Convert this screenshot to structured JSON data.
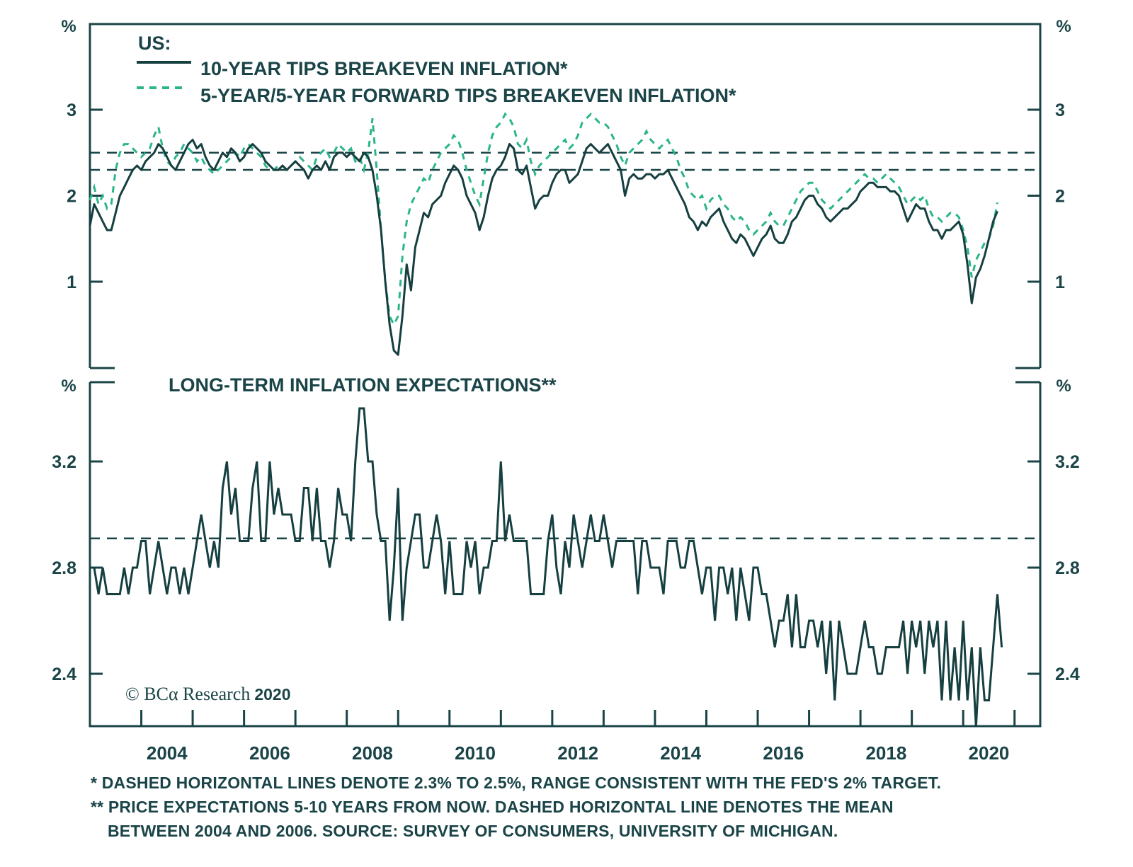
{
  "chart_data": [
    {
      "type": "line",
      "panel": "top",
      "legend_heading": "US:",
      "unit_label": "%",
      "series": [
        {
          "name": "10-YEAR TIPS BREAKEVEN INFLATION*",
          "style": "solid",
          "color": "#163f40",
          "start": 2003.0,
          "step_months": 1,
          "values": [
            1.65,
            1.9,
            1.8,
            1.7,
            1.6,
            1.6,
            1.8,
            2.0,
            2.1,
            2.2,
            2.3,
            2.35,
            2.3,
            2.4,
            2.45,
            2.5,
            2.6,
            2.55,
            2.45,
            2.35,
            2.3,
            2.4,
            2.5,
            2.6,
            2.65,
            2.55,
            2.6,
            2.45,
            2.35,
            2.3,
            2.4,
            2.5,
            2.45,
            2.55,
            2.5,
            2.4,
            2.45,
            2.55,
            2.6,
            2.55,
            2.5,
            2.4,
            2.35,
            2.3,
            2.3,
            2.35,
            2.3,
            2.35,
            2.4,
            2.35,
            2.3,
            2.2,
            2.3,
            2.35,
            2.3,
            2.4,
            2.3,
            2.45,
            2.5,
            2.5,
            2.45,
            2.5,
            2.45,
            2.4,
            2.5,
            2.45,
            2.3,
            2.0,
            1.6,
            1.0,
            0.5,
            0.2,
            0.15,
            0.6,
            1.2,
            0.9,
            1.4,
            1.6,
            1.8,
            1.75,
            1.9,
            1.95,
            2.0,
            2.15,
            2.25,
            2.35,
            2.3,
            2.2,
            2.0,
            1.9,
            1.8,
            1.6,
            1.75,
            2.0,
            2.2,
            2.3,
            2.35,
            2.45,
            2.6,
            2.55,
            2.3,
            2.25,
            2.35,
            2.1,
            1.85,
            1.95,
            2.0,
            2.0,
            2.15,
            2.25,
            2.3,
            2.3,
            2.15,
            2.2,
            2.25,
            2.4,
            2.55,
            2.6,
            2.55,
            2.5,
            2.55,
            2.6,
            2.5,
            2.4,
            2.3,
            2.0,
            2.2,
            2.25,
            2.2,
            2.2,
            2.25,
            2.25,
            2.2,
            2.25,
            2.25,
            2.3,
            2.2,
            2.1,
            2.0,
            1.9,
            1.75,
            1.7,
            1.6,
            1.7,
            1.65,
            1.75,
            1.8,
            1.85,
            1.7,
            1.6,
            1.5,
            1.45,
            1.55,
            1.5,
            1.4,
            1.3,
            1.4,
            1.5,
            1.55,
            1.65,
            1.5,
            1.45,
            1.45,
            1.55,
            1.7,
            1.75,
            1.85,
            1.95,
            2.0,
            2.0,
            1.9,
            1.85,
            1.75,
            1.7,
            1.75,
            1.8,
            1.85,
            1.85,
            1.9,
            1.95,
            2.05,
            2.1,
            2.15,
            2.15,
            2.1,
            2.1,
            2.1,
            2.05,
            2.05,
            2.0,
            1.85,
            1.7,
            1.8,
            1.9,
            1.85,
            1.85,
            1.7,
            1.6,
            1.6,
            1.5,
            1.6,
            1.6,
            1.65,
            1.7,
            1.55,
            1.2,
            0.75,
            1.05,
            1.15,
            1.3,
            1.5,
            1.7,
            1.82
          ]
        },
        {
          "name": "5-YEAR/5-YEAR FORWARD TIPS BREAKEVEN INFLATION*",
          "style": "dashed",
          "color": "#2bb58a",
          "start": 2003.0,
          "step_months": 1,
          "values": [
            1.95,
            2.1,
            1.9,
            2.0,
            1.85,
            1.9,
            2.3,
            2.5,
            2.6,
            2.6,
            2.55,
            2.5,
            2.45,
            2.5,
            2.55,
            2.7,
            2.8,
            2.55,
            2.4,
            2.35,
            2.45,
            2.5,
            2.6,
            2.55,
            2.5,
            2.4,
            2.45,
            2.35,
            2.3,
            2.25,
            2.3,
            2.35,
            2.4,
            2.45,
            2.5,
            2.45,
            2.55,
            2.6,
            2.55,
            2.5,
            2.45,
            2.35,
            2.3,
            2.3,
            2.35,
            2.35,
            2.3,
            2.35,
            2.4,
            2.45,
            2.4,
            2.35,
            2.3,
            2.45,
            2.5,
            2.55,
            2.45,
            2.5,
            2.6,
            2.55,
            2.5,
            2.55,
            2.4,
            2.45,
            2.3,
            2.5,
            2.9,
            2.3,
            1.6,
            1.0,
            0.6,
            0.5,
            0.6,
            1.3,
            1.7,
            1.9,
            2.0,
            2.1,
            2.2,
            2.15,
            2.3,
            2.4,
            2.5,
            2.55,
            2.6,
            2.7,
            2.65,
            2.5,
            2.3,
            2.15,
            2.0,
            1.9,
            2.2,
            2.5,
            2.7,
            2.8,
            2.85,
            2.95,
            2.9,
            2.8,
            2.6,
            2.55,
            2.65,
            2.4,
            2.25,
            2.35,
            2.4,
            2.45,
            2.5,
            2.55,
            2.6,
            2.65,
            2.55,
            2.6,
            2.7,
            2.85,
            2.9,
            2.95,
            2.9,
            2.85,
            2.85,
            2.8,
            2.7,
            2.6,
            2.45,
            2.35,
            2.5,
            2.55,
            2.6,
            2.65,
            2.75,
            2.65,
            2.6,
            2.55,
            2.6,
            2.65,
            2.55,
            2.45,
            2.3,
            2.2,
            2.05,
            2.0,
            1.95,
            2.0,
            1.85,
            1.95,
            2.0,
            2.0,
            1.9,
            1.85,
            1.75,
            1.7,
            1.75,
            1.7,
            1.6,
            1.55,
            1.6,
            1.65,
            1.7,
            1.8,
            1.7,
            1.65,
            1.65,
            1.75,
            1.85,
            1.95,
            2.05,
            2.1,
            2.15,
            2.15,
            2.05,
            1.95,
            1.9,
            1.85,
            1.9,
            1.95,
            2.0,
            2.05,
            2.1,
            2.15,
            2.2,
            2.25,
            2.2,
            2.2,
            2.15,
            2.2,
            2.25,
            2.2,
            2.15,
            2.1,
            2.0,
            1.9,
            1.95,
            2.0,
            1.95,
            2.0,
            1.85,
            1.75,
            1.75,
            1.7,
            1.75,
            1.8,
            1.8,
            1.75,
            1.6,
            1.4,
            1.05,
            1.25,
            1.35,
            1.45,
            1.5,
            1.65,
            1.92
          ]
        }
      ],
      "reference_lines": [
        2.3,
        2.5
      ],
      "yticks": [
        1,
        2,
        3
      ],
      "ylim": [
        0,
        3.5
      ],
      "xlim": [
        2003.0,
        2021.5
      ],
      "grid": false,
      "legend_position": "top-left"
    },
    {
      "type": "line",
      "panel": "bottom",
      "title": "LONG-TERM INFLATION EXPECTATIONS**",
      "unit_label": "%",
      "series": [
        {
          "name": "LONG-TERM INFLATION EXPECTATIONS**",
          "style": "solid",
          "color": "#163f40",
          "start": 2003.0,
          "step_months": 1,
          "values": [
            2.8,
            2.8,
            2.7,
            2.8,
            2.7,
            2.7,
            2.7,
            2.7,
            2.8,
            2.7,
            2.8,
            2.8,
            2.9,
            2.9,
            2.7,
            2.8,
            2.9,
            2.8,
            2.7,
            2.8,
            2.8,
            2.7,
            2.8,
            2.7,
            2.8,
            2.9,
            3.0,
            2.9,
            2.8,
            2.9,
            2.8,
            3.1,
            3.2,
            3.0,
            3.1,
            2.9,
            2.9,
            2.9,
            3.1,
            3.2,
            2.9,
            2.9,
            3.2,
            3.0,
            3.1,
            3.0,
            3.0,
            3.0,
            2.9,
            2.9,
            3.1,
            3.1,
            2.9,
            3.1,
            2.9,
            2.9,
            2.8,
            2.9,
            3.1,
            3.0,
            3.0,
            2.9,
            3.2,
            3.4,
            3.4,
            3.2,
            3.2,
            3.0,
            2.9,
            2.9,
            2.6,
            2.8,
            3.1,
            2.6,
            2.8,
            2.9,
            3.0,
            3.0,
            2.8,
            2.8,
            2.9,
            3.0,
            2.9,
            2.7,
            2.9,
            2.7,
            2.7,
            2.7,
            2.9,
            2.8,
            2.9,
            2.7,
            2.8,
            2.8,
            2.9,
            2.9,
            3.2,
            2.9,
            3.0,
            2.9,
            2.9,
            2.9,
            2.9,
            2.7,
            2.7,
            2.7,
            2.7,
            2.9,
            3.0,
            2.8,
            2.7,
            2.9,
            2.8,
            3.0,
            2.9,
            2.8,
            2.9,
            3.0,
            2.9,
            2.9,
            3.0,
            2.9,
            2.8,
            2.9,
            2.9,
            2.9,
            2.9,
            2.9,
            2.7,
            2.9,
            2.9,
            2.8,
            2.8,
            2.8,
            2.7,
            2.9,
            2.9,
            2.9,
            2.8,
            2.8,
            2.9,
            2.9,
            2.8,
            2.7,
            2.8,
            2.8,
            2.6,
            2.8,
            2.8,
            2.7,
            2.8,
            2.6,
            2.8,
            2.7,
            2.6,
            2.8,
            2.8,
            2.7,
            2.7,
            2.6,
            2.5,
            2.6,
            2.6,
            2.7,
            2.5,
            2.7,
            2.5,
            2.5,
            2.6,
            2.6,
            2.5,
            2.6,
            2.4,
            2.6,
            2.3,
            2.6,
            2.5,
            2.4,
            2.4,
            2.4,
            2.5,
            2.6,
            2.5,
            2.5,
            2.4,
            2.4,
            2.5,
            2.5,
            2.5,
            2.5,
            2.6,
            2.4,
            2.6,
            2.5,
            2.6,
            2.4,
            2.6,
            2.5,
            2.6,
            2.3,
            2.6,
            2.3,
            2.5,
            2.3,
            2.6,
            2.3,
            2.5,
            2.2,
            2.5,
            2.3,
            2.3,
            2.5,
            2.7,
            2.5
          ]
        }
      ],
      "reference_lines": [
        2.91
      ],
      "yticks": [
        2.4,
        2.8,
        3.2
      ],
      "ylim": [
        2.2,
        3.5
      ],
      "xlim": [
        2003.0,
        2021.5
      ],
      "xticks": [
        2004,
        2006,
        2008,
        2010,
        2012,
        2014,
        2016,
        2018,
        2020
      ],
      "grid": false
    }
  ],
  "labels": {
    "top_unit_left": "%",
    "top_unit_right": "%",
    "bottom_unit_left": "%",
    "bottom_unit_right": "%",
    "legend_heading": "US:",
    "legend_1": "10-YEAR TIPS BREAKEVEN INFLATION*",
    "legend_2": "5-YEAR/5-YEAR FORWARD TIPS BREAKEVEN INFLATION*",
    "bottom_title": "LONG-TERM INFLATION EXPECTATIONS**",
    "copyright": "© BCα Research",
    "copyright_year": "2020",
    "top_yticks": [
      "1",
      "2",
      "3"
    ],
    "bottom_yticks": [
      "2.4",
      "2.8",
      "3.2"
    ],
    "xticks": [
      "2004",
      "2006",
      "2008",
      "2010",
      "2012",
      "2014",
      "2016",
      "2018",
      "2020"
    ]
  },
  "footnotes": {
    "note1": "*  DASHED HORIZONTAL LINES DENOTE 2.3% TO 2.5%, RANGE CONSISTENT WITH THE FED'S 2% TARGET.",
    "note2": "** PRICE EXPECTATIONS 5-10 YEARS FROM NOW. DASHED HORIZONTAL LINE DENOTES THE MEAN",
    "note3": "BETWEEN 2004 AND 2006. SOURCE: SURVEY OF CONSUMERS, UNIVERSITY OF MICHIGAN."
  }
}
